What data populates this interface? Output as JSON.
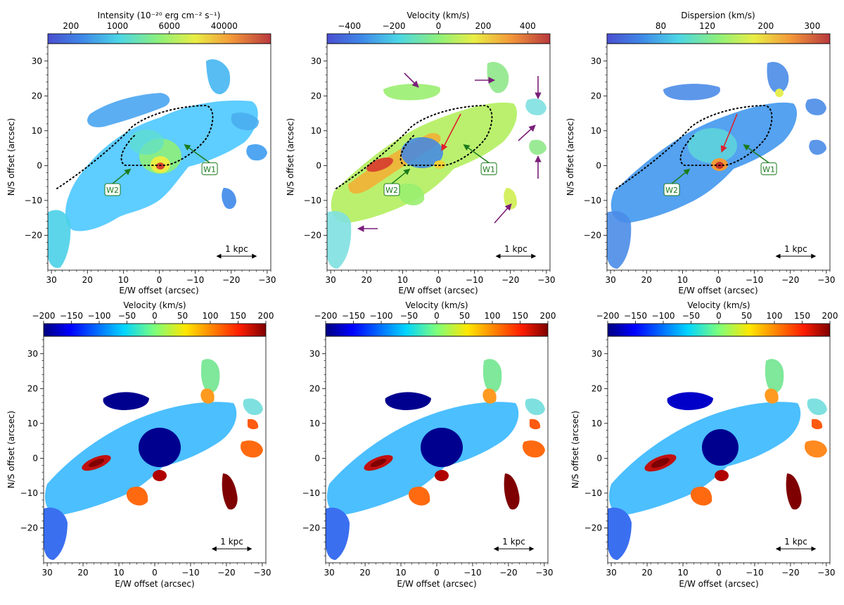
{
  "chart_data": [
    {
      "type": "heatmap",
      "id": "p1",
      "colorbar": {
        "label": "Intensity (10⁻²⁰ erg cm⁻² s⁻¹)",
        "scale": "log",
        "range": [
          90,
          200000
        ],
        "ticks": [
          200,
          1000,
          6000,
          40000
        ],
        "tick_labels": [
          "200",
          "1000",
          "6000",
          "40000"
        ],
        "colormap": "jet-soft"
      },
      "xlabel": "E/W offset (arcsec)",
      "ylabel": "N/S offset (arcsec)",
      "xlim": [
        31,
        -31
      ],
      "ylim": [
        -30,
        35
      ],
      "xticks": [
        30,
        20,
        10,
        0,
        -10,
        -20,
        -30
      ],
      "xtick_labels": [
        "30",
        "20",
        "10",
        "0",
        "−10",
        "−20",
        "−30"
      ],
      "yticks": [
        -20,
        -10,
        0,
        10,
        20,
        30
      ],
      "ytick_labels": [
        "−20",
        "−10",
        "0",
        "10",
        "20",
        "30"
      ],
      "scalebar": {
        "label": "1 kpc",
        "x": [
          -16,
          -27
        ],
        "y": -26
      },
      "annotations": [
        {
          "label": "W1",
          "text_at": [
            -14,
            -1
          ],
          "arrow_to": [
            -7,
            6
          ],
          "color": "#1b7a1b"
        },
        {
          "label": "W2",
          "text_at": [
            13,
            -7
          ],
          "arrow_to": [
            8,
            -1
          ],
          "color": "#1b7a1b"
        }
      ]
    },
    {
      "type": "heatmap",
      "id": "p2",
      "colorbar": {
        "label": "Velocity (km/s)",
        "scale": "linear",
        "range": [
          -500,
          500
        ],
        "ticks": [
          -400,
          -200,
          0,
          200,
          400
        ],
        "tick_labels": [
          "−400",
          "−200",
          "0",
          "200",
          "400"
        ],
        "colormap": "jet-soft"
      },
      "xlabel": "E/W offset (arcsec)",
      "ylabel": "N/S offset (arcsec)",
      "xlim": [
        31,
        -31
      ],
      "ylim": [
        -30,
        35
      ],
      "xticks": [
        30,
        20,
        10,
        0,
        -10,
        -20,
        -30
      ],
      "xtick_labels": [
        "30",
        "20",
        "10",
        "0",
        "−10",
        "−20",
        "−30"
      ],
      "yticks": [
        -20,
        -10,
        0,
        10,
        20,
        30
      ],
      "ytick_labels": [
        "−20",
        "−10",
        "0",
        "10",
        "20",
        "30"
      ],
      "scalebar": {
        "label": "1 kpc",
        "x": [
          -16,
          -27
        ],
        "y": -26
      },
      "annotations": [
        {
          "label": "W1",
          "text_at": [
            -14,
            -1
          ],
          "arrow_to": [
            -7,
            6
          ],
          "color": "#1b7a1b"
        },
        {
          "label": "W2",
          "text_at": [
            13,
            -7
          ],
          "arrow_to": [
            8,
            -1
          ],
          "color": "#1b7a1b"
        }
      ]
    },
    {
      "type": "heatmap",
      "id": "p3",
      "colorbar": {
        "label": "Dispersion (km/s)",
        "scale": "log",
        "range": [
          50,
          350
        ],
        "ticks": [
          80,
          120,
          200,
          300
        ],
        "tick_labels": [
          "80",
          "120",
          "200",
          "300"
        ],
        "colormap": "jet-soft"
      },
      "xlabel": "E/W offset (arcsec)",
      "ylabel": "N/S offset (arcsec)",
      "xlim": [
        31,
        -31
      ],
      "ylim": [
        -30,
        35
      ],
      "xticks": [
        30,
        20,
        10,
        0,
        -10,
        -20,
        -30
      ],
      "xtick_labels": [
        "30",
        "20",
        "10",
        "0",
        "−10",
        "−20",
        "−30"
      ],
      "yticks": [
        -20,
        -10,
        0,
        10,
        20,
        30
      ],
      "ytick_labels": [
        "−20",
        "−10",
        "0",
        "10",
        "20",
        "30"
      ],
      "scalebar": {
        "label": "1 kpc",
        "x": [
          -16,
          -27
        ],
        "y": -26
      },
      "annotations": [
        {
          "label": "W1",
          "text_at": [
            -14,
            -1
          ],
          "arrow_to": [
            -7,
            6
          ],
          "color": "#1b7a1b"
        },
        {
          "label": "W2",
          "text_at": [
            13,
            -7
          ],
          "arrow_to": [
            8,
            -1
          ],
          "color": "#1b7a1b"
        }
      ]
    },
    {
      "type": "heatmap",
      "id": "p4",
      "colorbar": {
        "label": "Velocity (km/s)",
        "scale": "linear",
        "range": [
          -200,
          200
        ],
        "ticks": [
          -200,
          -150,
          -100,
          -50,
          0,
          50,
          100,
          150,
          200
        ],
        "tick_labels": [
          "−200",
          "−150",
          "−100",
          "−50",
          "0",
          "50",
          "100",
          "150",
          "200"
        ],
        "colormap": "jet"
      },
      "xlabel": "E/W offset (arcsec)",
      "ylabel": "N/S offset (arcsec)",
      "xlim": [
        31,
        -31
      ],
      "ylim": [
        -30,
        35
      ],
      "xticks": [
        30,
        20,
        10,
        0,
        -10,
        -20,
        -30
      ],
      "xtick_labels": [
        "30",
        "20",
        "10",
        "0",
        "−10",
        "−20",
        "−30"
      ],
      "yticks": [
        -20,
        -10,
        0,
        10,
        20,
        30
      ],
      "ytick_labels": [
        "−20",
        "−10",
        "0",
        "10",
        "20",
        "30"
      ],
      "scalebar": {
        "label": "1 kpc",
        "x": [
          -16,
          -27
        ],
        "y": -26
      },
      "annotations": []
    },
    {
      "type": "heatmap",
      "id": "p5",
      "colorbar": {
        "label": "Velocity (km/s)",
        "scale": "linear",
        "range": [
          -200,
          200
        ],
        "ticks": [
          -200,
          -150,
          -100,
          -50,
          0,
          50,
          100,
          150,
          200
        ],
        "tick_labels": [
          "−200",
          "−150",
          "−100",
          "−50",
          "0",
          "50",
          "100",
          "150",
          "200"
        ],
        "colormap": "jet"
      },
      "xlabel": "E/W offset (arcsec)",
      "ylabel": "",
      "xlim": [
        31,
        -31
      ],
      "ylim": [
        -30,
        35
      ],
      "xticks": [
        30,
        20,
        10,
        0,
        -10,
        -20,
        -30
      ],
      "xtick_labels": [
        "30",
        "20",
        "10",
        "0",
        "−10",
        "−20",
        "−30"
      ],
      "yticks": [
        -20,
        -10,
        0,
        10,
        20,
        30
      ],
      "ytick_labels": [
        "−20",
        "−10",
        "0",
        "10",
        "20",
        "30"
      ],
      "scalebar": {
        "label": "1 kpc",
        "x": [
          -16,
          -27
        ],
        "y": -26
      },
      "annotations": []
    },
    {
      "type": "heatmap",
      "id": "p6",
      "colorbar": {
        "label": "Velocity (km/s)",
        "scale": "linear",
        "range": [
          -200,
          200
        ],
        "ticks": [
          -200,
          -150,
          -100,
          -50,
          0,
          50,
          100,
          150,
          200
        ],
        "tick_labels": [
          "−200",
          "−150",
          "−100",
          "−50",
          "0",
          "50",
          "100",
          "150",
          "200"
        ],
        "colormap": "jet"
      },
      "xlabel": "E/W offset (arcsec)",
      "ylabel": "N/S offset (arcsec)",
      "xlim": [
        31,
        -31
      ],
      "ylim": [
        -30,
        35
      ],
      "xticks": [
        30,
        20,
        10,
        0,
        -10,
        -20,
        -30
      ],
      "xtick_labels": [
        "30",
        "20",
        "10",
        "0",
        "−10",
        "−20",
        "−30"
      ],
      "yticks": [
        -20,
        -10,
        0,
        10,
        20,
        30
      ],
      "ytick_labels": [
        "−20",
        "−10",
        "0",
        "10",
        "20",
        "30"
      ],
      "scalebar": {
        "label": "1 kpc",
        "x": [
          -16,
          -27
        ],
        "y": -26
      },
      "annotations": []
    }
  ],
  "colors": {
    "annotation_green": "#1b7a1b",
    "arrow_purple": "#7a1f7a",
    "arrow_red": "#e0202a"
  }
}
